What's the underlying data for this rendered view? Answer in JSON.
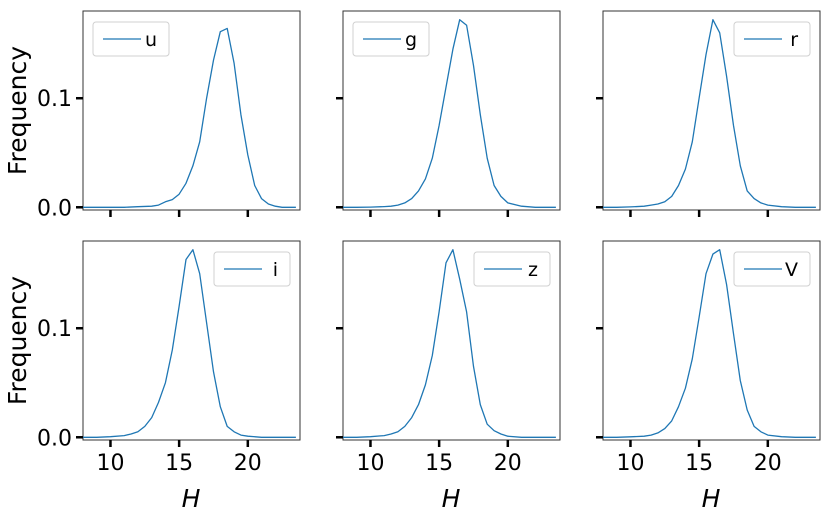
{
  "chart_data": {
    "type": "line",
    "xlabel": "H",
    "ylabel": "Frequency",
    "xlim": [
      8,
      23.8
    ],
    "ylim": [
      -0.0025,
      0.18
    ],
    "x_ticks": [
      "10",
      "15",
      "20"
    ],
    "y_ticks": [
      "0.0",
      "0.1"
    ],
    "line_color": "#1f77b4",
    "grid": false,
    "layout": "2 rows x 3 columns, shared axes",
    "panels": [
      {
        "legend": "u",
        "legend_position": "top-left",
        "x": [
          8,
          9,
          10,
          11,
          12,
          13,
          13.5,
          14,
          14.5,
          15,
          15.5,
          16,
          16.5,
          17,
          17.5,
          18,
          18.5,
          19,
          19.5,
          20,
          20.5,
          21,
          21.5,
          22,
          22.5,
          23,
          23.5
        ],
        "y": [
          0,
          0,
          0,
          0,
          0.0005,
          0.001,
          0.002,
          0.005,
          0.007,
          0.012,
          0.022,
          0.038,
          0.06,
          0.1,
          0.135,
          0.161,
          0.164,
          0.132,
          0.085,
          0.048,
          0.02,
          0.008,
          0.003,
          0.001,
          0,
          0,
          0
        ]
      },
      {
        "legend": "g",
        "legend_position": "top-left",
        "x": [
          8,
          9,
          10,
          11,
          11.5,
          12,
          12.5,
          13,
          13.5,
          14,
          14.5,
          15,
          15.5,
          16,
          16.5,
          17,
          17.5,
          18,
          18.5,
          19,
          19.5,
          20,
          21,
          22,
          23,
          23.5
        ],
        "y": [
          0,
          0,
          0.0002,
          0.0006,
          0.001,
          0.002,
          0.004,
          0.008,
          0.015,
          0.026,
          0.045,
          0.075,
          0.11,
          0.145,
          0.172,
          0.167,
          0.13,
          0.085,
          0.045,
          0.02,
          0.01,
          0.004,
          0.001,
          0,
          0,
          0
        ]
      },
      {
        "legend": "r",
        "legend_position": "top-right",
        "x": [
          8,
          9,
          10,
          11,
          11.5,
          12,
          12.5,
          13,
          13.5,
          14,
          14.5,
          15,
          15.5,
          16,
          16.5,
          17,
          17.5,
          18,
          18.5,
          19,
          19.5,
          20,
          21,
          22,
          23,
          23.5
        ],
        "y": [
          0,
          0,
          0.0003,
          0.001,
          0.002,
          0.003,
          0.005,
          0.01,
          0.02,
          0.035,
          0.06,
          0.1,
          0.14,
          0.172,
          0.16,
          0.12,
          0.075,
          0.038,
          0.015,
          0.008,
          0.004,
          0.002,
          0.0005,
          0,
          0,
          0
        ]
      },
      {
        "legend": "i",
        "legend_position": "top-right",
        "x": [
          8,
          9,
          10,
          11,
          11.5,
          12,
          12.5,
          13,
          13.5,
          14,
          14.5,
          15,
          15.5,
          16,
          16.5,
          17,
          17.5,
          18,
          18.5,
          19,
          19.5,
          20,
          21,
          22,
          23,
          23.5
        ],
        "y": [
          0,
          0,
          0.0005,
          0.0015,
          0.003,
          0.005,
          0.01,
          0.018,
          0.032,
          0.05,
          0.08,
          0.12,
          0.163,
          0.172,
          0.15,
          0.105,
          0.06,
          0.028,
          0.01,
          0.005,
          0.002,
          0.001,
          0,
          0,
          0,
          0
        ]
      },
      {
        "legend": "z",
        "legend_position": "top-right",
        "x": [
          8,
          9,
          10,
          11,
          11.5,
          12,
          12.5,
          13,
          13.5,
          14,
          14.5,
          15,
          15.5,
          16,
          16.5,
          17,
          17.5,
          18,
          18.5,
          19,
          19.5,
          20,
          21,
          22,
          23,
          23.5
        ],
        "y": [
          0,
          0,
          0.0005,
          0.0015,
          0.003,
          0.005,
          0.01,
          0.018,
          0.03,
          0.048,
          0.075,
          0.115,
          0.16,
          0.172,
          0.145,
          0.115,
          0.065,
          0.03,
          0.012,
          0.006,
          0.003,
          0.001,
          0,
          0,
          0,
          0
        ]
      },
      {
        "legend": "V",
        "legend_position": "top-right",
        "x": [
          8,
          9,
          10,
          11,
          11.5,
          12,
          12.5,
          13,
          13.5,
          14,
          14.5,
          15,
          15.5,
          16,
          16.5,
          17,
          17.5,
          18,
          18.5,
          19,
          19.5,
          20,
          21,
          22,
          23,
          23.5
        ],
        "y": [
          0,
          0,
          0.0004,
          0.001,
          0.002,
          0.004,
          0.008,
          0.015,
          0.028,
          0.045,
          0.072,
          0.11,
          0.15,
          0.168,
          0.172,
          0.14,
          0.095,
          0.052,
          0.025,
          0.01,
          0.005,
          0.002,
          0.0005,
          0,
          0,
          0
        ]
      }
    ]
  }
}
